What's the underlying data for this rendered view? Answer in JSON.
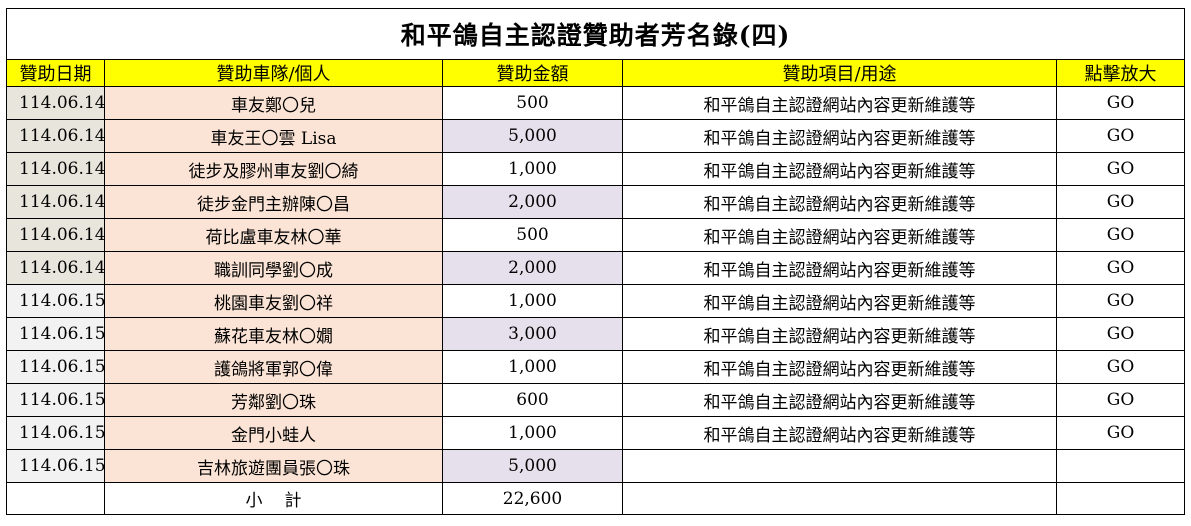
{
  "sheet": {
    "title": "和平鴿自主認證贊助者芳名錄(四)",
    "headers": {
      "date": "贊助日期",
      "donor": "贊助車隊/個人",
      "amount": "贊助金額",
      "purpose": "贊助項目/用途",
      "link": "點擊放大"
    },
    "rows": [
      {
        "date": "114.06.14",
        "donor": "車友鄭〇兒",
        "amount": "500",
        "purpose": "和平鴿自主認證網站內容更新維護等",
        "link": "GO"
      },
      {
        "date": "114.06.14",
        "donor": "車友王〇雲 Lisa",
        "amount": "5,000",
        "purpose": "和平鴿自主認證網站內容更新維護等",
        "link": "GO"
      },
      {
        "date": "114.06.14",
        "donor": "徒步及膠州車友劉〇綺",
        "amount": "1,000",
        "purpose": "和平鴿自主認證網站內容更新維護等",
        "link": "GO"
      },
      {
        "date": "114.06.14",
        "donor": "徒步金門主辦陳〇昌",
        "amount": "2,000",
        "purpose": "和平鴿自主認證網站內容更新維護等",
        "link": "GO"
      },
      {
        "date": "114.06.14",
        "donor": "荷比盧車友林〇華",
        "amount": "500",
        "purpose": "和平鴿自主認證網站內容更新維護等",
        "link": "GO"
      },
      {
        "date": "114.06.14",
        "donor": "職訓同學劉〇成",
        "amount": "2,000",
        "purpose": "和平鴿自主認證網站內容更新維護等",
        "link": "GO"
      },
      {
        "date": "114.06.15",
        "donor": "桃園車友劉〇祥",
        "amount": "1,000",
        "purpose": "和平鴿自主認證網站內容更新維護等",
        "link": "GO"
      },
      {
        "date": "114.06.15",
        "donor": "蘇花車友林〇嫺",
        "amount": "3,000",
        "purpose": "和平鴿自主認證網站內容更新維護等",
        "link": "GO"
      },
      {
        "date": "114.06.15",
        "donor": "護鴿將軍郭〇偉",
        "amount": "1,000",
        "purpose": "和平鴿自主認證網站內容更新維護等",
        "link": "GO"
      },
      {
        "date": "114.06.15",
        "donor": "芳鄰劉〇珠",
        "amount": "600",
        "purpose": "和平鴿自主認證網站內容更新維護等",
        "link": "GO"
      },
      {
        "date": "114.06.15",
        "donor": "金門小蛙人",
        "amount": "1,000",
        "purpose": "和平鴿自主認證網站內容更新維護等",
        "link": "GO"
      },
      {
        "date": "114.06.15",
        "donor": "吉林旅遊團員張〇珠",
        "amount": "5,000",
        "purpose": "",
        "link": ""
      }
    ],
    "total_label": "小計",
    "total_amount": "22,600"
  },
  "colors": {
    "header_fill": "#ffff00",
    "donor_fill": "#fbe4d5",
    "amount_highlight_fill": "#e6e0ec",
    "date_0614_fill": "#e8e6dc",
    "date_0615_fill": "#f2f2f2"
  }
}
